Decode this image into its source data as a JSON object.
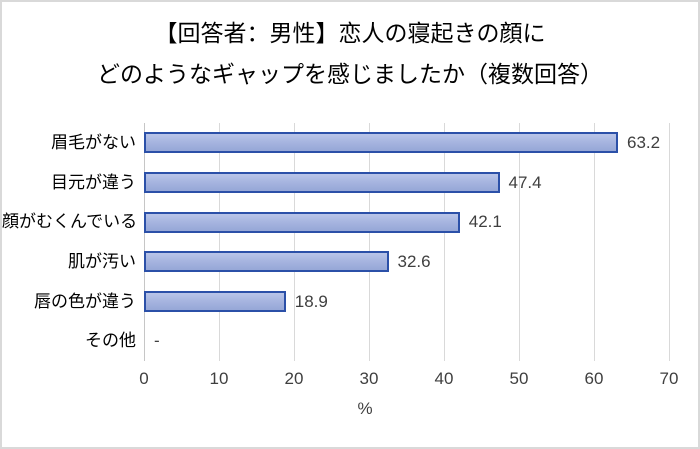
{
  "title": {
    "line1": "【回答者：男性】恋人の寝起きの顔に",
    "line2": "どのようなギャップを感じましたか（複数回答）"
  },
  "chart_data": {
    "type": "bar",
    "orientation": "horizontal",
    "title": "【回答者：男性】恋人の寝起きの顔に どのようなギャップを感じましたか（複数回答）",
    "categories": [
      "眉毛がない",
      "目元が違う",
      "顔がむくんでいる",
      "肌が汚い",
      "唇の色が違う",
      "その他"
    ],
    "values": [
      63.2,
      47.4,
      42.1,
      32.6,
      18.9,
      null
    ],
    "value_labels": [
      "63.2",
      "47.4",
      "42.1",
      "32.6",
      "18.9",
      "-"
    ],
    "xlabel": "%",
    "ylabel": "",
    "xlim": [
      0,
      70
    ],
    "x_ticks": [
      0,
      10,
      20,
      30,
      40,
      50,
      60,
      70
    ],
    "grid": true,
    "legend": "none",
    "colors": {
      "bar_fill_top": "#b9c5e9",
      "bar_fill_mid": "#a7b5e0",
      "bar_fill_bottom": "#96a7d7",
      "bar_border": "#2b50a8",
      "gridline": "#d9d9d9",
      "axis_line": "#c6c6c6",
      "frame_border": "#d9d9d9",
      "title_text": "#000000",
      "label_text": "#3f3f3f"
    }
  }
}
